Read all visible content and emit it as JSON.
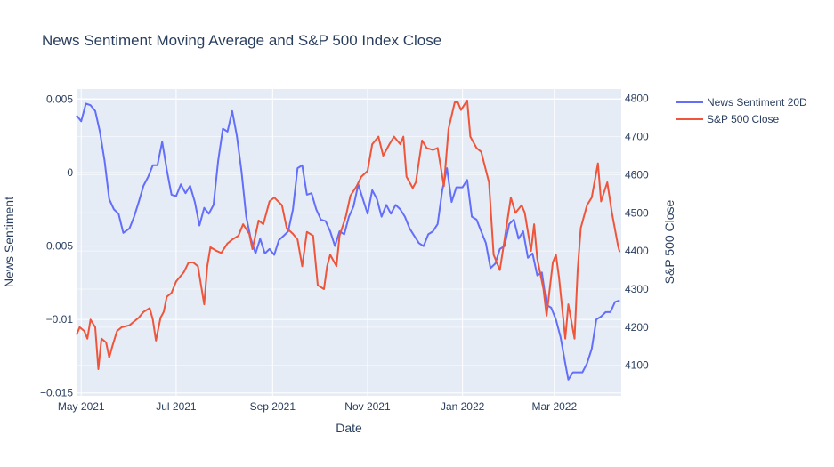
{
  "chart_data": {
    "type": "line",
    "title": "News Sentiment Moving Average and S&P 500 Index Close",
    "xlabel": "Date",
    "ylabel_left": "News Sentiment",
    "ylabel_right": "S&P 500 Close",
    "x_range": [
      "2021-04-28",
      "2022-04-13"
    ],
    "x_ticks": [
      {
        "date": "2021-05-01",
        "label": "May 2021"
      },
      {
        "date": "2021-07-01",
        "label": "Jul 2021"
      },
      {
        "date": "2021-09-01",
        "label": "Sep 2021"
      },
      {
        "date": "2021-11-01",
        "label": "Nov 2021"
      },
      {
        "date": "2022-01-01",
        "label": "Jan 2022"
      },
      {
        "date": "2022-03-01",
        "label": "Mar 2022"
      }
    ],
    "y_left": {
      "range": [
        -0.0152,
        0.0057
      ],
      "ticks": [
        -0.015,
        -0.01,
        -0.005,
        0,
        0.005
      ],
      "tick_labels": [
        "−0.015",
        "−0.01",
        "−0.005",
        "0",
        "0.005"
      ]
    },
    "y_right": {
      "range": [
        4020,
        4825
      ],
      "ticks": [
        4100,
        4200,
        4300,
        4400,
        4500,
        4600,
        4700,
        4800
      ],
      "tick_labels": [
        "4100",
        "4200",
        "4300",
        "4400",
        "4500",
        "4600",
        "4700",
        "4800"
      ]
    },
    "legend_position": "top-right",
    "grid": true,
    "series": [
      {
        "name": "News Sentiment 20D",
        "axis": "left",
        "color": "#636efa",
        "points": [
          [
            "2021-04-28",
            0.0039
          ],
          [
            "2021-05-01",
            0.0035
          ],
          [
            "2021-05-04",
            0.0047
          ],
          [
            "2021-05-07",
            0.0046
          ],
          [
            "2021-05-10",
            0.0042
          ],
          [
            "2021-05-13",
            0.0028
          ],
          [
            "2021-05-16",
            0.0008
          ],
          [
            "2021-05-19",
            -0.0018
          ],
          [
            "2021-05-22",
            -0.0025
          ],
          [
            "2021-05-25",
            -0.0028
          ],
          [
            "2021-05-28",
            -0.0041
          ],
          [
            "2021-06-01",
            -0.0038
          ],
          [
            "2021-06-04",
            -0.003
          ],
          [
            "2021-06-07",
            -0.002
          ],
          [
            "2021-06-10",
            -0.0009
          ],
          [
            "2021-06-13",
            -0.0003
          ],
          [
            "2021-06-16",
            0.0005
          ],
          [
            "2021-06-19",
            0.0005
          ],
          [
            "2021-06-22",
            0.0021
          ],
          [
            "2021-06-25",
            0.0002
          ],
          [
            "2021-06-28",
            -0.0015
          ],
          [
            "2021-07-01",
            -0.0016
          ],
          [
            "2021-07-04",
            -0.0008
          ],
          [
            "2021-07-07",
            -0.0014
          ],
          [
            "2021-07-10",
            -0.0009
          ],
          [
            "2021-07-13",
            -0.002
          ],
          [
            "2021-07-16",
            -0.0036
          ],
          [
            "2021-07-19",
            -0.0024
          ],
          [
            "2021-07-22",
            -0.0028
          ],
          [
            "2021-07-25",
            -0.0022
          ],
          [
            "2021-07-28",
            0.0008
          ],
          [
            "2021-07-31",
            0.003
          ],
          [
            "2021-08-03",
            0.0028
          ],
          [
            "2021-08-06",
            0.0042
          ],
          [
            "2021-08-09",
            0.0025
          ],
          [
            "2021-08-12",
            0.0001
          ],
          [
            "2021-08-15",
            -0.003
          ],
          [
            "2021-08-18",
            -0.0045
          ],
          [
            "2021-08-21",
            -0.0055
          ],
          [
            "2021-08-24",
            -0.0045
          ],
          [
            "2021-08-27",
            -0.0055
          ],
          [
            "2021-08-30",
            -0.0052
          ],
          [
            "2021-09-02",
            -0.0056
          ],
          [
            "2021-09-05",
            -0.0046
          ],
          [
            "2021-09-08",
            -0.0043
          ],
          [
            "2021-09-11",
            -0.004
          ],
          [
            "2021-09-14",
            -0.0025
          ],
          [
            "2021-09-17",
            0.0003
          ],
          [
            "2021-09-20",
            0.0005
          ],
          [
            "2021-09-23",
            -0.0015
          ],
          [
            "2021-09-26",
            -0.0014
          ],
          [
            "2021-09-29",
            -0.0025
          ],
          [
            "2021-10-02",
            -0.0032
          ],
          [
            "2021-10-05",
            -0.0033
          ],
          [
            "2021-10-08",
            -0.004
          ],
          [
            "2021-10-11",
            -0.005
          ],
          [
            "2021-10-14",
            -0.004
          ],
          [
            "2021-10-17",
            -0.0042
          ],
          [
            "2021-10-20",
            -0.003
          ],
          [
            "2021-10-23",
            -0.0023
          ],
          [
            "2021-10-26",
            -0.0008
          ],
          [
            "2021-10-29",
            -0.0018
          ],
          [
            "2021-11-01",
            -0.0028
          ],
          [
            "2021-11-04",
            -0.0012
          ],
          [
            "2021-11-07",
            -0.0018
          ],
          [
            "2021-11-10",
            -0.003
          ],
          [
            "2021-11-13",
            -0.0022
          ],
          [
            "2021-11-16",
            -0.0028
          ],
          [
            "2021-11-19",
            -0.0022
          ],
          [
            "2021-11-22",
            -0.0025
          ],
          [
            "2021-11-25",
            -0.003
          ],
          [
            "2021-11-28",
            -0.0038
          ],
          [
            "2021-12-01",
            -0.0043
          ],
          [
            "2021-12-04",
            -0.0048
          ],
          [
            "2021-12-07",
            -0.005
          ],
          [
            "2021-12-10",
            -0.0042
          ],
          [
            "2021-12-13",
            -0.004
          ],
          [
            "2021-12-16",
            -0.0035
          ],
          [
            "2021-12-19",
            -0.0012
          ],
          [
            "2021-12-22",
            0.0003
          ],
          [
            "2021-12-25",
            -0.002
          ],
          [
            "2021-12-28",
            -0.001
          ],
          [
            "2022-01-01",
            -0.001
          ],
          [
            "2022-01-04",
            -0.0005
          ],
          [
            "2022-01-07",
            -0.003
          ],
          [
            "2022-01-10",
            -0.0032
          ],
          [
            "2022-01-13",
            -0.004
          ],
          [
            "2022-01-16",
            -0.0048
          ],
          [
            "2022-01-19",
            -0.0065
          ],
          [
            "2022-01-22",
            -0.0062
          ],
          [
            "2022-01-25",
            -0.0052
          ],
          [
            "2022-01-28",
            -0.005
          ],
          [
            "2022-01-31",
            -0.0035
          ],
          [
            "2022-02-03",
            -0.0032
          ],
          [
            "2022-02-06",
            -0.0045
          ],
          [
            "2022-02-09",
            -0.004
          ],
          [
            "2022-02-12",
            -0.0058
          ],
          [
            "2022-02-15",
            -0.0055
          ],
          [
            "2022-02-18",
            -0.007
          ],
          [
            "2022-02-21",
            -0.0068
          ],
          [
            "2022-02-24",
            -0.009
          ],
          [
            "2022-02-27",
            -0.0092
          ],
          [
            "2022-03-02",
            -0.01
          ],
          [
            "2022-03-05",
            -0.0112
          ],
          [
            "2022-03-08",
            -0.013
          ],
          [
            "2022-03-10",
            -0.0141
          ],
          [
            "2022-03-13",
            -0.0136
          ],
          [
            "2022-03-16",
            -0.0136
          ],
          [
            "2022-03-19",
            -0.0136
          ],
          [
            "2022-03-22",
            -0.013
          ],
          [
            "2022-03-25",
            -0.012
          ],
          [
            "2022-03-28",
            -0.01
          ],
          [
            "2022-03-31",
            -0.0098
          ],
          [
            "2022-04-03",
            -0.0095
          ],
          [
            "2022-04-06",
            -0.0095
          ],
          [
            "2022-04-09",
            -0.0088
          ],
          [
            "2022-04-12",
            -0.0087
          ]
        ]
      },
      {
        "name": "S&P 500 Close",
        "axis": "right",
        "color": "#ef553b",
        "points": [
          [
            "2021-04-28",
            4180
          ],
          [
            "2021-04-30",
            4200
          ],
          [
            "2021-05-03",
            4190
          ],
          [
            "2021-05-05",
            4170
          ],
          [
            "2021-05-07",
            4220
          ],
          [
            "2021-05-10",
            4200
          ],
          [
            "2021-05-12",
            4090
          ],
          [
            "2021-05-14",
            4170
          ],
          [
            "2021-05-17",
            4160
          ],
          [
            "2021-05-19",
            4120
          ],
          [
            "2021-05-21",
            4150
          ],
          [
            "2021-05-24",
            4190
          ],
          [
            "2021-05-27",
            4200
          ],
          [
            "2021-06-01",
            4205
          ],
          [
            "2021-06-04",
            4215
          ],
          [
            "2021-06-07",
            4225
          ],
          [
            "2021-06-10",
            4240
          ],
          [
            "2021-06-14",
            4250
          ],
          [
            "2021-06-16",
            4220
          ],
          [
            "2021-06-18",
            4165
          ],
          [
            "2021-06-21",
            4225
          ],
          [
            "2021-06-23",
            4240
          ],
          [
            "2021-06-25",
            4280
          ],
          [
            "2021-06-28",
            4290
          ],
          [
            "2021-07-01",
            4320
          ],
          [
            "2021-07-06",
            4345
          ],
          [
            "2021-07-09",
            4370
          ],
          [
            "2021-07-12",
            4370
          ],
          [
            "2021-07-15",
            4360
          ],
          [
            "2021-07-19",
            4260
          ],
          [
            "2021-07-21",
            4360
          ],
          [
            "2021-07-23",
            4410
          ],
          [
            "2021-07-27",
            4400
          ],
          [
            "2021-07-30",
            4395
          ],
          [
            "2021-08-03",
            4420
          ],
          [
            "2021-08-06",
            4430
          ],
          [
            "2021-08-10",
            4440
          ],
          [
            "2021-08-13",
            4470
          ],
          [
            "2021-08-17",
            4445
          ],
          [
            "2021-08-19",
            4405
          ],
          [
            "2021-08-23",
            4480
          ],
          [
            "2021-08-26",
            4470
          ],
          [
            "2021-08-30",
            4530
          ],
          [
            "2021-09-02",
            4540
          ],
          [
            "2021-09-07",
            4520
          ],
          [
            "2021-09-10",
            4460
          ],
          [
            "2021-09-14",
            4445
          ],
          [
            "2021-09-17",
            4430
          ],
          [
            "2021-09-20",
            4360
          ],
          [
            "2021-09-23",
            4450
          ],
          [
            "2021-09-27",
            4440
          ],
          [
            "2021-09-30",
            4310
          ],
          [
            "2021-10-04",
            4300
          ],
          [
            "2021-10-06",
            4360
          ],
          [
            "2021-10-08",
            4390
          ],
          [
            "2021-10-12",
            4360
          ],
          [
            "2021-10-14",
            4440
          ],
          [
            "2021-10-18",
            4490
          ],
          [
            "2021-10-21",
            4545
          ],
          [
            "2021-10-25",
            4570
          ],
          [
            "2021-10-28",
            4595
          ],
          [
            "2021-11-01",
            4610
          ],
          [
            "2021-11-04",
            4680
          ],
          [
            "2021-11-08",
            4700
          ],
          [
            "2021-11-11",
            4650
          ],
          [
            "2021-11-15",
            4680
          ],
          [
            "2021-11-18",
            4700
          ],
          [
            "2021-11-22",
            4680
          ],
          [
            "2021-11-24",
            4700
          ],
          [
            "2021-11-26",
            4595
          ],
          [
            "2021-11-30",
            4565
          ],
          [
            "2021-12-02",
            4580
          ],
          [
            "2021-12-06",
            4690
          ],
          [
            "2021-12-09",
            4670
          ],
          [
            "2021-12-13",
            4665
          ],
          [
            "2021-12-16",
            4670
          ],
          [
            "2021-12-20",
            4570
          ],
          [
            "2021-12-23",
            4720
          ],
          [
            "2021-12-27",
            4790
          ],
          [
            "2021-12-29",
            4790
          ],
          [
            "2021-12-31",
            4770
          ],
          [
            "2022-01-04",
            4795
          ],
          [
            "2022-01-06",
            4700
          ],
          [
            "2022-01-10",
            4670
          ],
          [
            "2022-01-13",
            4660
          ],
          [
            "2022-01-18",
            4580
          ],
          [
            "2022-01-21",
            4390
          ],
          [
            "2022-01-25",
            4350
          ],
          [
            "2022-01-28",
            4430
          ],
          [
            "2022-02-01",
            4540
          ],
          [
            "2022-02-04",
            4500
          ],
          [
            "2022-02-08",
            4520
          ],
          [
            "2022-02-10",
            4500
          ],
          [
            "2022-02-14",
            4400
          ],
          [
            "2022-02-16",
            4470
          ],
          [
            "2022-02-18",
            4380
          ],
          [
            "2022-02-22",
            4300
          ],
          [
            "2022-02-24",
            4230
          ],
          [
            "2022-02-28",
            4370
          ],
          [
            "2022-03-02",
            4390
          ],
          [
            "2022-03-04",
            4330
          ],
          [
            "2022-03-08",
            4170
          ],
          [
            "2022-03-10",
            4260
          ],
          [
            "2022-03-14",
            4170
          ],
          [
            "2022-03-16",
            4350
          ],
          [
            "2022-03-18",
            4460
          ],
          [
            "2022-03-22",
            4520
          ],
          [
            "2022-03-25",
            4540
          ],
          [
            "2022-03-29",
            4630
          ],
          [
            "2022-03-31",
            4530
          ],
          [
            "2022-04-04",
            4580
          ],
          [
            "2022-04-07",
            4500
          ],
          [
            "2022-04-11",
            4412
          ],
          [
            "2022-04-12",
            4397
          ]
        ]
      }
    ]
  }
}
